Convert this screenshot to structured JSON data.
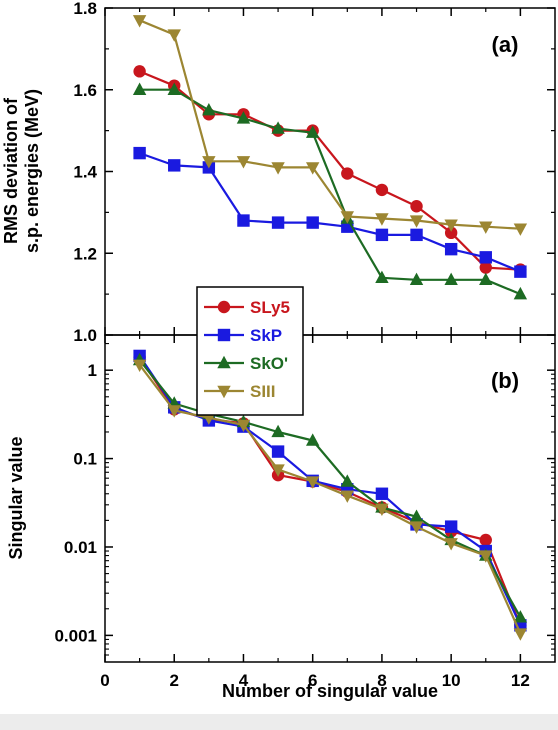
{
  "chart_data": [
    {
      "type": "line",
      "panel_label": "(a)",
      "ylabel_lines": [
        "RMS deviation of",
        "s.p. energies (MeV)"
      ],
      "xlabel": "",
      "xlim": [
        0,
        13
      ],
      "ylim": [
        1.0,
        1.8
      ],
      "xticks": [
        0,
        2,
        4,
        6,
        8,
        10,
        12
      ],
      "yticks": [
        1.0,
        1.2,
        1.4,
        1.6,
        1.8
      ],
      "ytick_labels": [
        "1.0",
        "1.2",
        "1.4",
        "1.6",
        "1.8"
      ],
      "x": [
        1,
        2,
        3,
        4,
        5,
        6,
        7,
        8,
        9,
        10,
        11,
        12
      ],
      "series": [
        {
          "name": "SLy5",
          "color": "#c8161d",
          "marker": "circle",
          "values": [
            1.645,
            1.61,
            1.54,
            1.54,
            1.5,
            1.5,
            1.395,
            1.355,
            1.315,
            1.25,
            1.165,
            1.16
          ]
        },
        {
          "name": "SkP",
          "color": "#1a1ae0",
          "marker": "square",
          "values": [
            1.445,
            1.415,
            1.41,
            1.28,
            1.275,
            1.275,
            1.265,
            1.245,
            1.245,
            1.21,
            1.19,
            1.155
          ]
        },
        {
          "name": "SkO'",
          "color": "#1d6b23",
          "marker": "triangle-up",
          "values": [
            1.6,
            1.6,
            1.55,
            1.53,
            1.505,
            1.495,
            1.285,
            1.14,
            1.135,
            1.135,
            1.135,
            1.1
          ]
        },
        {
          "name": "SIII",
          "color": "#9c8632",
          "marker": "triangle-down",
          "values": [
            1.77,
            1.735,
            1.425,
            1.425,
            1.41,
            1.41,
            1.29,
            1.285,
            1.28,
            1.27,
            1.265,
            1.26
          ]
        }
      ]
    },
    {
      "type": "line",
      "panel_label": "(b)",
      "ylabel": "Singular value",
      "xlabel": "Number of singular value",
      "yscale": "log",
      "xlim": [
        0,
        13
      ],
      "ylim": [
        0.0005,
        2.5
      ],
      "xticks": [
        0,
        2,
        4,
        6,
        8,
        10,
        12
      ],
      "xtick_labels": [
        "0",
        "2",
        "4",
        "6",
        "8",
        "10",
        "12"
      ],
      "yticks": [
        0.001,
        0.01,
        0.1,
        1
      ],
      "ytick_labels": [
        "0.001",
        "0.01",
        "0.1",
        "1"
      ],
      "x": [
        1,
        2,
        3,
        4,
        5,
        6,
        7,
        8,
        9,
        10,
        11,
        12
      ],
      "series": [
        {
          "name": "SLy5",
          "color": "#c8161d",
          "marker": "circle",
          "values": [
            1.4,
            0.36,
            0.28,
            0.25,
            0.065,
            0.055,
            0.042,
            0.028,
            0.019,
            0.015,
            0.012,
            0.0013
          ]
        },
        {
          "name": "SkP",
          "color": "#1a1ae0",
          "marker": "square",
          "values": [
            1.45,
            0.38,
            0.27,
            0.23,
            0.12,
            0.056,
            0.045,
            0.04,
            0.018,
            0.017,
            0.009,
            0.0013
          ]
        },
        {
          "name": "SkO'",
          "color": "#1d6b23",
          "marker": "triangle-up",
          "values": [
            1.3,
            0.42,
            0.32,
            0.26,
            0.2,
            0.16,
            0.055,
            0.028,
            0.022,
            0.012,
            0.008,
            0.0016
          ]
        },
        {
          "name": "SIII",
          "color": "#9c8632",
          "marker": "triangle-down",
          "values": [
            1.15,
            0.35,
            0.29,
            0.24,
            0.075,
            0.055,
            0.038,
            0.027,
            0.017,
            0.011,
            0.008,
            0.00105
          ]
        }
      ]
    }
  ],
  "legend": {
    "placement": "bottom-left of panel (a), overlapping panel (b)",
    "entries": [
      "SLy5",
      "SkP",
      "SkO'",
      "SIII"
    ]
  }
}
